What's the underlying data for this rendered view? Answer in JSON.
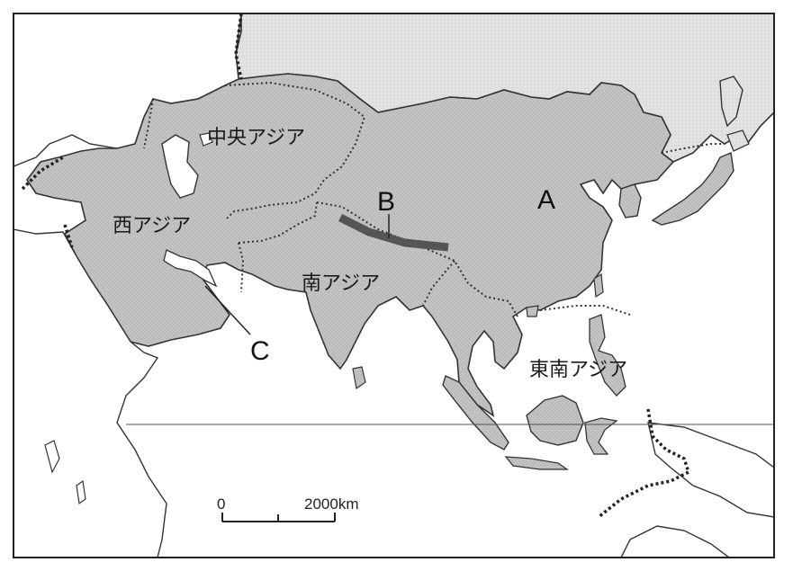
{
  "regions": {
    "central_asia": "中央アジア",
    "west_asia": "西アジア",
    "south_asia": "南アジア",
    "southeast_asia": "東南アジア"
  },
  "markers": {
    "a": "A",
    "b": "B",
    "c": "C"
  },
  "scale": {
    "start": "0",
    "end": "2000km"
  },
  "colors": {
    "asia_fill": "#bdbdbd",
    "other_land": "#dedede",
    "sea": "#ffffff",
    "border": "#444444",
    "himalaya": "#555555"
  }
}
